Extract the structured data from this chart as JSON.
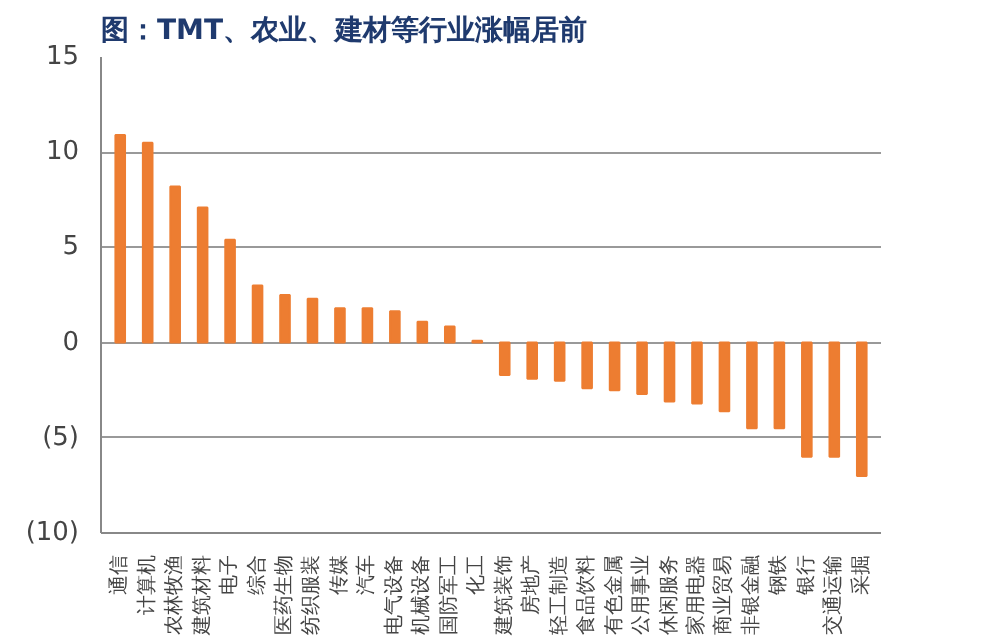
{
  "chart_data": {
    "type": "bar",
    "title": "图：TMT、农业、建材等行业涨幅居前",
    "categories": [
      "通信",
      "计算机",
      "农林牧渔",
      "建筑材料",
      "电子",
      "综合",
      "医药生物",
      "纺织服装",
      "传媒",
      "汽车",
      "电气设备",
      "机械设备",
      "国防军工",
      "化工",
      "建筑装饰",
      "房地产",
      "轻工制造",
      "食品饮料",
      "有色金属",
      "公用事业",
      "休闲服务",
      "家用电器",
      "商业贸易",
      "非银金融",
      "钢铁",
      "银行",
      "交通运输",
      "采掘"
    ],
    "values": [
      10.9,
      10.5,
      8.2,
      7.1,
      5.4,
      3.0,
      2.5,
      2.3,
      1.8,
      1.8,
      1.65,
      1.1,
      0.85,
      0.1,
      -1.7,
      -1.9,
      -2.0,
      -2.4,
      -2.5,
      -2.7,
      -3.1,
      -3.2,
      -3.6,
      -4.5,
      -4.5,
      -6.0,
      -6.0,
      -7.0
    ],
    "color": "#ed7d31",
    "ylim": [
      -10,
      15
    ],
    "yticks": [
      {
        "value": -10,
        "label": "(10)"
      },
      {
        "value": -5,
        "label": "(5)"
      },
      0,
      5,
      10,
      15
    ],
    "grid": "y"
  }
}
